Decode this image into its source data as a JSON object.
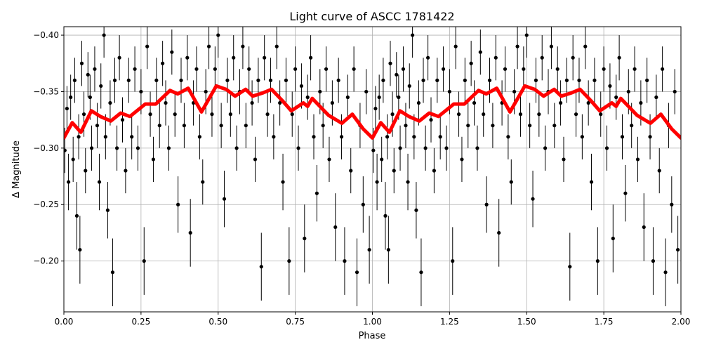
{
  "chart_data": {
    "type": "scatter",
    "title": "Light curve of ASCC 1781422",
    "xlabel": "Phase",
    "ylabel": "Δ Magnitude",
    "xlim": [
      0.0,
      2.0
    ],
    "ylim": [
      -0.4075,
      -0.155
    ],
    "y_inverted": true,
    "grid": true,
    "x_ticks": [
      "0.00",
      "0.25",
      "0.50",
      "0.75",
      "1.00",
      "1.25",
      "1.50",
      "1.75",
      "2.00"
    ],
    "x_tick_values": [
      0,
      0.25,
      0.5,
      0.75,
      1.0,
      1.25,
      1.5,
      1.75,
      2.0
    ],
    "y_ticks": [
      "−0.40",
      "−0.35",
      "−0.30",
      "−0.25",
      "−0.20"
    ],
    "y_tick_values": [
      -0.4,
      -0.35,
      -0.3,
      -0.25,
      -0.2
    ],
    "colors": {
      "points": "#000000",
      "model": "#ff0000",
      "grid": "#b0b0b0"
    },
    "phase_repeat": true,
    "points_phase_mag_err": [
      [
        0.003,
        -0.298,
        0.02
      ],
      [
        0.01,
        -0.335,
        0.02
      ],
      [
        0.015,
        -0.27,
        0.025
      ],
      [
        0.022,
        -0.345,
        0.02
      ],
      [
        0.03,
        -0.29,
        0.02
      ],
      [
        0.035,
        -0.36,
        0.02
      ],
      [
        0.042,
        -0.24,
        0.03
      ],
      [
        0.048,
        -0.31,
        0.02
      ],
      [
        0.052,
        -0.21,
        0.03
      ],
      [
        0.058,
        -0.375,
        0.02
      ],
      [
        0.065,
        -0.33,
        0.02
      ],
      [
        0.07,
        -0.28,
        0.02
      ],
      [
        0.078,
        -0.365,
        0.02
      ],
      [
        0.085,
        -0.345,
        0.02
      ],
      [
        0.09,
        -0.3,
        0.02
      ],
      [
        0.1,
        -0.37,
        0.02
      ],
      [
        0.108,
        -0.32,
        0.02
      ],
      [
        0.115,
        -0.27,
        0.025
      ],
      [
        0.12,
        -0.355,
        0.02
      ],
      [
        0.13,
        -0.4,
        0.02
      ],
      [
        0.135,
        -0.31,
        0.02
      ],
      [
        0.142,
        -0.245,
        0.025
      ],
      [
        0.15,
        -0.34,
        0.02
      ],
      [
        0.158,
        -0.19,
        0.03
      ],
      [
        0.165,
        -0.36,
        0.02
      ],
      [
        0.172,
        -0.3,
        0.02
      ],
      [
        0.18,
        -0.38,
        0.02
      ],
      [
        0.19,
        -0.325,
        0.02
      ],
      [
        0.2,
        -0.28,
        0.02
      ],
      [
        0.21,
        -0.36,
        0.02
      ],
      [
        0.22,
        -0.31,
        0.02
      ],
      [
        0.23,
        -0.37,
        0.02
      ],
      [
        0.24,
        -0.3,
        0.02
      ],
      [
        0.25,
        -0.35,
        0.02
      ],
      [
        0.26,
        -0.2,
        0.03
      ],
      [
        0.27,
        -0.39,
        0.02
      ],
      [
        0.28,
        -0.33,
        0.02
      ],
      [
        0.29,
        -0.29,
        0.02
      ],
      [
        0.3,
        -0.36,
        0.02
      ],
      [
        0.31,
        -0.32,
        0.02
      ],
      [
        0.32,
        -0.375,
        0.02
      ],
      [
        0.33,
        -0.34,
        0.02
      ],
      [
        0.34,
        -0.3,
        0.02
      ],
      [
        0.35,
        -0.385,
        0.02
      ],
      [
        0.36,
        -0.33,
        0.02
      ],
      [
        0.37,
        -0.25,
        0.025
      ],
      [
        0.38,
        -0.36,
        0.02
      ],
      [
        0.39,
        -0.32,
        0.02
      ],
      [
        0.4,
        -0.38,
        0.02
      ],
      [
        0.41,
        -0.225,
        0.03
      ],
      [
        0.42,
        -0.34,
        0.02
      ],
      [
        0.43,
        -0.37,
        0.02
      ],
      [
        0.44,
        -0.31,
        0.02
      ],
      [
        0.45,
        -0.27,
        0.02
      ],
      [
        0.46,
        -0.35,
        0.02
      ],
      [
        0.47,
        -0.39,
        0.02
      ],
      [
        0.48,
        -0.33,
        0.02
      ],
      [
        0.49,
        -0.37,
        0.02
      ],
      [
        0.5,
        -0.4,
        0.02
      ],
      [
        0.51,
        -0.32,
        0.02
      ],
      [
        0.52,
        -0.255,
        0.025
      ],
      [
        0.53,
        -0.36,
        0.02
      ],
      [
        0.54,
        -0.33,
        0.02
      ],
      [
        0.55,
        -0.38,
        0.02
      ],
      [
        0.56,
        -0.3,
        0.02
      ],
      [
        0.57,
        -0.35,
        0.02
      ],
      [
        0.58,
        -0.39,
        0.02
      ],
      [
        0.59,
        -0.32,
        0.02
      ],
      [
        0.6,
        -0.37,
        0.02
      ],
      [
        0.61,
        -0.34,
        0.02
      ],
      [
        0.62,
        -0.29,
        0.02
      ],
      [
        0.63,
        -0.36,
        0.02
      ],
      [
        0.64,
        -0.195,
        0.03
      ],
      [
        0.65,
        -0.38,
        0.02
      ],
      [
        0.66,
        -0.33,
        0.02
      ],
      [
        0.67,
        -0.36,
        0.02
      ],
      [
        0.68,
        -0.31,
        0.02
      ],
      [
        0.69,
        -0.39,
        0.02
      ],
      [
        0.7,
        -0.34,
        0.02
      ],
      [
        0.71,
        -0.27,
        0.025
      ],
      [
        0.72,
        -0.36,
        0.02
      ],
      [
        0.73,
        -0.2,
        0.03
      ],
      [
        0.74,
        -0.33,
        0.02
      ],
      [
        0.75,
        -0.37,
        0.02
      ],
      [
        0.76,
        -0.3,
        0.02
      ],
      [
        0.77,
        -0.355,
        0.02
      ],
      [
        0.78,
        -0.22,
        0.03
      ],
      [
        0.79,
        -0.345,
        0.02
      ],
      [
        0.8,
        -0.38,
        0.02
      ],
      [
        0.81,
        -0.31,
        0.02
      ],
      [
        0.82,
        -0.26,
        0.025
      ],
      [
        0.83,
        -0.35,
        0.02
      ],
      [
        0.84,
        -0.32,
        0.02
      ],
      [
        0.85,
        -0.37,
        0.02
      ],
      [
        0.86,
        -0.29,
        0.02
      ],
      [
        0.87,
        -0.34,
        0.02
      ],
      [
        0.88,
        -0.23,
        0.03
      ],
      [
        0.89,
        -0.36,
        0.02
      ],
      [
        0.9,
        -0.31,
        0.02
      ],
      [
        0.91,
        -0.2,
        0.03
      ],
      [
        0.92,
        -0.345,
        0.02
      ],
      [
        0.93,
        -0.28,
        0.02
      ],
      [
        0.94,
        -0.37,
        0.02
      ],
      [
        0.95,
        -0.19,
        0.03
      ],
      [
        0.96,
        -0.32,
        0.02
      ],
      [
        0.97,
        -0.25,
        0.025
      ],
      [
        0.98,
        -0.35,
        0.02
      ],
      [
        0.99,
        -0.21,
        0.03
      ]
    ],
    "model_curve_phase_mag": [
      [
        0.0,
        -0.309
      ],
      [
        0.027,
        -0.3225
      ],
      [
        0.055,
        -0.314
      ],
      [
        0.089,
        -0.333
      ],
      [
        0.118,
        -0.328
      ],
      [
        0.152,
        -0.324
      ],
      [
        0.184,
        -0.331
      ],
      [
        0.214,
        -0.328
      ],
      [
        0.264,
        -0.339
      ],
      [
        0.298,
        -0.339
      ],
      [
        0.344,
        -0.351
      ],
      [
        0.369,
        -0.348
      ],
      [
        0.403,
        -0.353
      ],
      [
        0.446,
        -0.332
      ],
      [
        0.494,
        -0.355
      ],
      [
        0.526,
        -0.352
      ],
      [
        0.555,
        -0.346
      ],
      [
        0.589,
        -0.352
      ],
      [
        0.612,
        -0.346
      ],
      [
        0.646,
        -0.349
      ],
      [
        0.673,
        -0.352
      ],
      [
        0.708,
        -0.342
      ],
      [
        0.737,
        -0.333
      ],
      [
        0.776,
        -0.34
      ],
      [
        0.79,
        -0.337
      ],
      [
        0.805,
        -0.344
      ],
      [
        0.858,
        -0.329
      ],
      [
        0.901,
        -0.322
      ],
      [
        0.935,
        -0.33
      ],
      [
        0.97,
        -0.317
      ],
      [
        1.0,
        -0.309
      ]
    ]
  }
}
